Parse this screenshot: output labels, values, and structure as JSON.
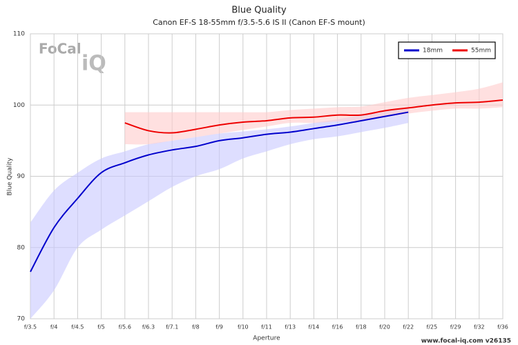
{
  "chart_data": {
    "type": "line",
    "title": "Blue Quality",
    "subtitle": "Canon EF-S 18-55mm f/3.5-5.6 IS II (Canon EF-S mount)",
    "x_label": "Aperture",
    "y_label": "Blue Quality",
    "footer": "www.focal-iq.com  v26135",
    "logo": {
      "top": "FoCal",
      "bottom": "iQ"
    },
    "categories": [
      "f/3.5",
      "f/4",
      "f/4.5",
      "f/5",
      "f/5.6",
      "f/6.3",
      "f/7.1",
      "f/8",
      "f/9",
      "f/10",
      "f/11",
      "f/13",
      "f/14",
      "f/16",
      "f/18",
      "f/20",
      "f/22",
      "f/25",
      "f/29",
      "f/32",
      "f/36"
    ],
    "ylim": [
      70,
      110
    ],
    "yticks": [
      70,
      80,
      90,
      100,
      110
    ],
    "grid": true,
    "legend": "top-right",
    "series": [
      {
        "name": "18mm",
        "color": "#0000cc",
        "band_color": "#c8c8ff",
        "values": [
          76.6,
          82.8,
          86.9,
          90.5,
          91.9,
          93.0,
          93.7,
          94.2,
          95.0,
          95.4,
          95.9,
          96.2,
          96.7,
          97.2,
          97.8,
          98.4,
          99.0,
          null,
          null,
          null,
          null
        ],
        "band_lower": [
          70,
          74,
          80,
          82.5,
          84.5,
          86.5,
          88.5,
          90,
          91,
          92.5,
          93.5,
          94.5,
          95.2,
          95.6,
          96.2,
          96.8,
          97.5,
          null,
          null,
          null,
          null
        ],
        "band_upper": [
          83.5,
          88,
          90.5,
          92.5,
          93.5,
          94.5,
          95,
          95.5,
          96,
          96.3,
          96.6,
          97,
          97.5,
          98,
          98.6,
          99.2,
          99.7,
          null,
          null,
          null,
          null
        ]
      },
      {
        "name": "55mm",
        "color": "#ee0000",
        "band_color": "#ffcccc",
        "values": [
          null,
          null,
          null,
          null,
          97.5,
          96.4,
          96.1,
          96.6,
          97.2,
          97.6,
          97.8,
          98.2,
          98.3,
          98.6,
          98.6,
          99.2,
          99.6,
          100.0,
          100.3,
          100.4,
          100.7
        ],
        "band_lower": [
          null,
          null,
          null,
          null,
          94.5,
          94.5,
          95,
          95.5,
          96,
          96.5,
          97,
          97.5,
          97.5,
          97.7,
          97.8,
          98.3,
          98.8,
          99.2,
          99.5,
          99.5,
          99.7
        ],
        "band_upper": [
          null,
          null,
          null,
          null,
          99,
          99,
          99,
          99,
          99,
          99,
          99,
          99.3,
          99.5,
          99.7,
          99.8,
          100.4,
          101,
          101.4,
          101.8,
          102.3,
          103.2
        ]
      }
    ]
  }
}
